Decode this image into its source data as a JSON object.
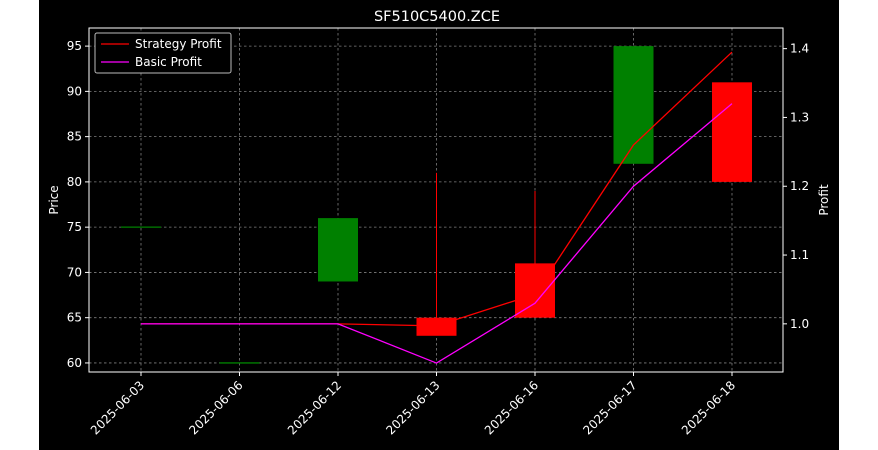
{
  "chart_data": {
    "type": "candlestick",
    "title": "SF510C5400.ZCE",
    "xlabel": "",
    "ylabel": "Price",
    "y2label": "Profit",
    "categories": [
      "2025-06-03",
      "2025-06-06",
      "2025-06-12",
      "2025-06-13",
      "2025-06-16",
      "2025-06-17",
      "2025-06-18"
    ],
    "ylim": [
      59,
      97
    ],
    "y2lim": [
      0.93,
      1.43
    ],
    "y_ticks": [
      60,
      65,
      70,
      75,
      80,
      85,
      90,
      95
    ],
    "y2_ticks": [
      1.0,
      1.1,
      1.2,
      1.3,
      1.4
    ],
    "candles": [
      {
        "date": "2025-06-03",
        "open": 75,
        "high": 75,
        "low": 75,
        "close": 75
      },
      {
        "date": "2025-06-06",
        "open": 60,
        "high": 60,
        "low": 60,
        "close": 60
      },
      {
        "date": "2025-06-12",
        "open": 69,
        "high": 76,
        "low": 69,
        "close": 76
      },
      {
        "date": "2025-06-13",
        "open": 65,
        "high": 81,
        "low": 63,
        "close": 63
      },
      {
        "date": "2025-06-16",
        "open": 71,
        "high": 79,
        "low": 65,
        "close": 65
      },
      {
        "date": "2025-06-17",
        "open": 82,
        "high": 95,
        "low": 82,
        "close": 95
      },
      {
        "date": "2025-06-18",
        "open": 91,
        "high": 91,
        "low": 80,
        "close": 80
      }
    ],
    "series": [
      {
        "name": "Strategy Profit",
        "axis": "right",
        "color": "#ff0000",
        "values": [
          1.0,
          1.0,
          1.0,
          0.997,
          1.043,
          1.26,
          1.395
        ]
      },
      {
        "name": "Basic Profit",
        "axis": "right",
        "color": "#ff00ff",
        "values": [
          1.0,
          1.0,
          1.0,
          0.943,
          1.03,
          1.2,
          1.32
        ]
      }
    ],
    "colors": {
      "up": "#008000",
      "down": "#ff0000",
      "background": "#000000",
      "axes": "#ffffff",
      "grid": "#7f7f7f"
    },
    "grid": true,
    "legend": "upper-left"
  }
}
